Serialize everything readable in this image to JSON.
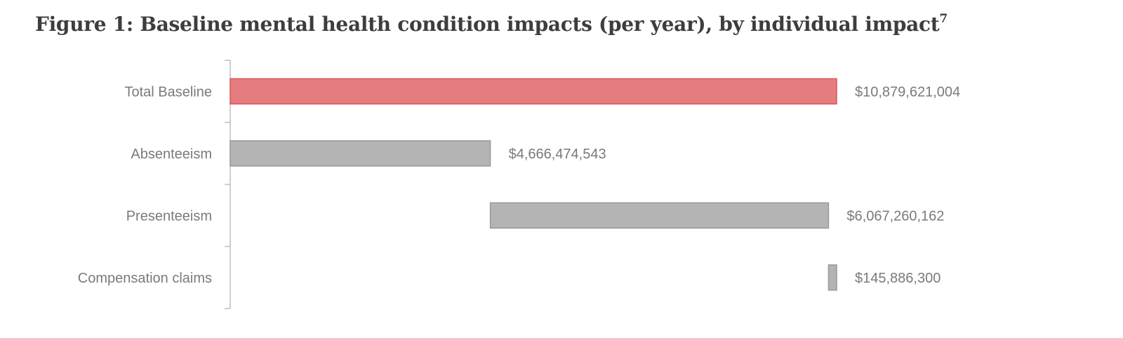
{
  "figure": {
    "title": "Figure 1: Baseline mental health condition impacts (per year), by individual impact",
    "footnote": "7"
  },
  "colors": {
    "highlight_fill": "#e57c7e",
    "highlight_stroke": "#d9585c",
    "neutral_fill": "#b4b4b4",
    "neutral_stroke": "#9a9a9a",
    "axis": "#bfbfbf",
    "label": "#7a7a7a"
  },
  "chart_data": {
    "type": "bar",
    "orientation": "horizontal",
    "subtype": "waterfall",
    "categories": [
      "Total Baseline",
      "Absenteeism",
      "Presenteeism",
      "Compensation claims"
    ],
    "values": [
      10879621004,
      4666474543,
      6067260162,
      145886300
    ],
    "value_labels": [
      "$10,879,621,004",
      "$4,666,474,543",
      "$6,067,260,162",
      "$145,886,300"
    ],
    "highlight": [
      true,
      false,
      false,
      false
    ],
    "stacking": [
      "total",
      "from-zero",
      "cumulative",
      "cumulative"
    ],
    "xlim": [
      0,
      10879621004
    ],
    "xlabel": "",
    "ylabel": "",
    "grid": false,
    "legend": "none"
  }
}
